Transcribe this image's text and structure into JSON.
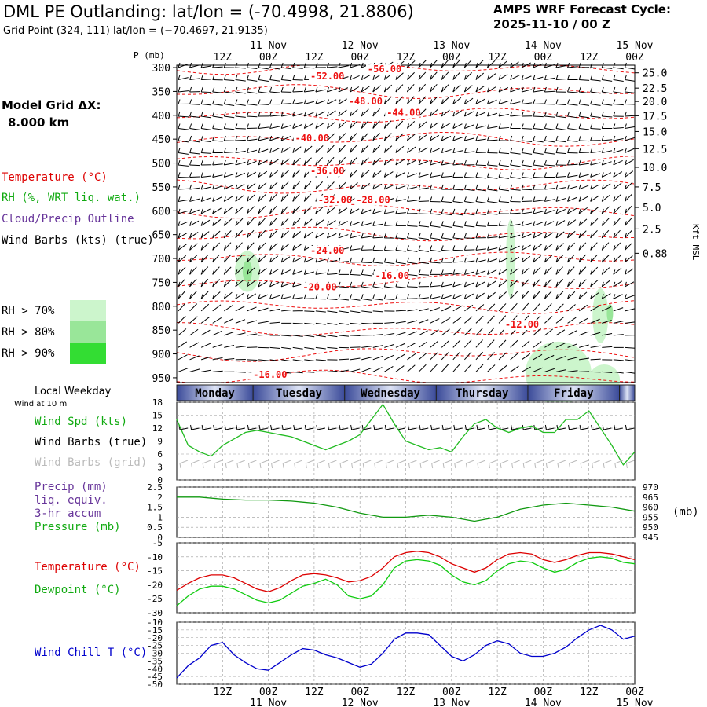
{
  "header": {
    "title": "DML PE Outlanding:  lat/lon = (-70.4998, 21.8806)",
    "subtitle": "Grid Point (324, 111) lat/lon = (−70.4697, 21.9135)",
    "cycle_line1": "AMPS WRF Forecast Cycle:",
    "cycle_line2": "2025-11-10 / 00  Z"
  },
  "legend": {
    "grid_line1": "Model Grid ΔX:",
    "grid_line2": "8.000 km",
    "temperature": "Temperature (°C)",
    "rh": "RH (%, WRT liq. wat.)",
    "cloud": "Cloud/Precip Outline",
    "wind_barbs": "Wind Barbs (kts) (true)",
    "rh70": "RH > 70%",
    "rh80": "RH > 80%",
    "rh90": "RH > 90%",
    "rh_colors": [
      "#ccf5cc",
      "#99e699",
      "#33dd33"
    ]
  },
  "time_axis": {
    "top_labels": [
      {
        "t": 12,
        "text": "12Z"
      },
      {
        "t": 24,
        "text": "00Z"
      },
      {
        "t": 36,
        "text": "12Z"
      },
      {
        "t": 48,
        "text": "00Z"
      },
      {
        "t": 60,
        "text": "12Z"
      },
      {
        "t": 72,
        "text": "00Z"
      },
      {
        "t": 84,
        "text": "12Z"
      },
      {
        "t": 96,
        "text": "00Z"
      },
      {
        "t": 108,
        "text": "12Z"
      },
      {
        "t": 120,
        "text": "00Z"
      }
    ],
    "date_labels": [
      {
        "t": 24,
        "text": "11 Nov"
      },
      {
        "t": 48,
        "text": "12 Nov"
      },
      {
        "t": 72,
        "text": "13 Nov"
      },
      {
        "t": 96,
        "text": "14 Nov"
      },
      {
        "t": 120,
        "text": "15 Nov"
      }
    ]
  },
  "weekday": {
    "label": "Local Weekday",
    "sublabel": "Wind at 10 m",
    "days": [
      {
        "name": "Monday",
        "start": 0,
        "end": 20
      },
      {
        "name": "Tuesday",
        "start": 20,
        "end": 44
      },
      {
        "name": "Wednesday",
        "start": 44,
        "end": 68
      },
      {
        "name": "Thursday",
        "start": 68,
        "end": 92
      },
      {
        "name": "Friday",
        "start": 92,
        "end": 116
      },
      {
        "name": "",
        "start": 116,
        "end": 120
      }
    ]
  },
  "panels": {
    "wind_labels": [
      "Wind Spd (kts)",
      "Wind Barbs (true)",
      "Wind Barbs (grid)"
    ],
    "precip_labels": [
      "Precip (mm)",
      "liq. equiv.",
      "3-hr accum",
      "Pressure (mb)"
    ],
    "pressure_unit": "(mb)",
    "temp_labels": [
      "Temperature (°C)",
      "Dewpoint (°C)"
    ],
    "windchill_label": "Wind Chill T (°C)",
    "colors": {
      "temperature": "#dd0000",
      "dewpoint": "#11cc11",
      "windspd": "#22bb22",
      "pressure": "#119911",
      "windchill": "#0000cc",
      "precip": "#663399",
      "contour": "#ee1111"
    }
  },
  "chart_data": [
    {
      "type": "heatmap",
      "name": "pressure-time cross section",
      "xlabel": "",
      "ylabel": "P (mb)",
      "y_right_label": "Kft MSL",
      "ylim": [
        960,
        295
      ],
      "pressure_ticks": [
        300,
        350,
        400,
        450,
        500,
        550,
        600,
        650,
        700,
        750,
        800,
        850,
        900,
        950
      ],
      "kft_ticks": [
        {
          "p": 311,
          "text": "25.0"
        },
        {
          "p": 343,
          "text": "22.5"
        },
        {
          "p": 371,
          "text": "20.0"
        },
        {
          "p": 401,
          "text": "17.5"
        },
        {
          "p": 434,
          "text": "15.0"
        },
        {
          "p": 470,
          "text": "12.5"
        },
        {
          "p": 509,
          "text": "10.0"
        },
        {
          "p": 550,
          "text": "7.5"
        },
        {
          "p": 593,
          "text": "5.0"
        },
        {
          "p": 638,
          "text": "2.5"
        },
        {
          "p": 689,
          "text": "0.88"
        }
      ],
      "temperature_labels": [
        {
          "t": 50,
          "p": 310,
          "text": "-56.00"
        },
        {
          "t": 35,
          "p": 325,
          "text": "-52.00"
        },
        {
          "t": 45,
          "p": 377,
          "text": "-48.00"
        },
        {
          "t": 55,
          "p": 401,
          "text": "-44.00"
        },
        {
          "t": 31,
          "p": 455,
          "text": "-40.00"
        },
        {
          "t": 35,
          "p": 523,
          "text": "-36.00"
        },
        {
          "t": 37,
          "p": 584,
          "text": "-32.00"
        },
        {
          "t": 47,
          "p": 584,
          "text": "-28.00"
        },
        {
          "t": 35,
          "p": 690,
          "text": "-24.00"
        },
        {
          "t": 52,
          "p": 743,
          "text": "-16.00"
        },
        {
          "t": 33,
          "p": 767,
          "text": "-20.00"
        },
        {
          "t": 86,
          "p": 845,
          "text": "-12.00"
        },
        {
          "t": 20,
          "p": 950,
          "text": "-16.00"
        }
      ]
    },
    {
      "type": "line",
      "name": "10 m wind speed",
      "ylabel": "Wind Spd (kts)",
      "ylim": [
        0,
        18
      ],
      "yticks": [
        0,
        3,
        6,
        9,
        12,
        15,
        18
      ],
      "x": [
        0,
        3,
        6,
        9,
        12,
        15,
        18,
        21,
        24,
        27,
        30,
        33,
        36,
        39,
        42,
        45,
        48,
        51,
        54,
        57,
        60,
        63,
        66,
        69,
        72,
        75,
        78,
        81,
        84,
        87,
        90,
        93,
        96,
        99,
        102,
        105,
        108,
        111,
        114,
        117,
        120
      ],
      "values": [
        14,
        8,
        6.5,
        5.5,
        8,
        9.5,
        11,
        11.5,
        11,
        10.5,
        10,
        9,
        8,
        7,
        8,
        9,
        10.5,
        14,
        17.5,
        13,
        9,
        8,
        7,
        7.5,
        6.5,
        10,
        13,
        14,
        12,
        11,
        12,
        12.5,
        11,
        11,
        14,
        14,
        16,
        12,
        8,
        3.5,
        6.5
      ]
    },
    {
      "type": "line",
      "name": "precip and pressure",
      "ylabel": "Precip (mm)",
      "ylim": [
        0,
        2.5
      ],
      "yticks": [
        0.0,
        0.5,
        1.0,
        1.5,
        2.0,
        2.5
      ],
      "y2label": "Pressure (mb)",
      "y2lim": [
        945,
        970
      ],
      "y2ticks": [
        945,
        950,
        955,
        960,
        965,
        970
      ],
      "series": [
        {
          "name": "Pressure (mb)",
          "x": [
            0,
            6,
            12,
            18,
            24,
            30,
            36,
            42,
            48,
            54,
            60,
            66,
            72,
            78,
            84,
            90,
            96,
            102,
            108,
            114,
            120
          ],
          "values": [
            965,
            965,
            964,
            963.5,
            963.5,
            963,
            962,
            960,
            957,
            955,
            955,
            956,
            955,
            953,
            955,
            959,
            961,
            962,
            961,
            960,
            958
          ]
        }
      ]
    },
    {
      "type": "line",
      "name": "temperature and dewpoint",
      "ylim": [
        -30,
        -5
      ],
      "yticks": [
        -30,
        -25,
        -20,
        -15,
        -10,
        -5
      ],
      "x": [
        0,
        3,
        6,
        9,
        12,
        15,
        18,
        21,
        24,
        27,
        30,
        33,
        36,
        39,
        42,
        45,
        48,
        51,
        54,
        57,
        60,
        63,
        66,
        69,
        72,
        75,
        78,
        81,
        84,
        87,
        90,
        93,
        96,
        99,
        102,
        105,
        108,
        111,
        114,
        117,
        120
      ],
      "series": [
        {
          "name": "Temperature (°C)",
          "values": [
            -22,
            -19.5,
            -17.5,
            -16.5,
            -16.5,
            -17.5,
            -19.5,
            -21.5,
            -22.5,
            -21,
            -18.5,
            -16.5,
            -16,
            -16.5,
            -17.5,
            -19,
            -18.5,
            -17,
            -14,
            -10,
            -8.5,
            -8,
            -8.5,
            -10,
            -12.5,
            -14,
            -15.5,
            -14,
            -11,
            -9,
            -8.5,
            -9,
            -11,
            -12,
            -11,
            -9.5,
            -8.5,
            -8.5,
            -9,
            -10,
            -11
          ]
        },
        {
          "name": "Dewpoint (°C)",
          "values": [
            -27.5,
            -24,
            -21.5,
            -20.5,
            -20.5,
            -21.5,
            -23.5,
            -25.5,
            -26.5,
            -25.5,
            -23,
            -20.5,
            -19.5,
            -18,
            -20,
            -24,
            -25,
            -24,
            -20,
            -14,
            -11.5,
            -11,
            -11.5,
            -13,
            -16.5,
            -19,
            -20,
            -18.5,
            -15,
            -12.5,
            -11.5,
            -12,
            -14,
            -15.5,
            -14.5,
            -12,
            -10.5,
            -10,
            -10.5,
            -12,
            -12.5
          ]
        }
      ]
    },
    {
      "type": "line",
      "name": "wind chill",
      "ylabel": "Wind Chill T (°C)",
      "ylim": [
        -50,
        -10
      ],
      "yticks": [
        -50,
        -45,
        -40,
        -35,
        -30,
        -25,
        -20,
        -15,
        -10
      ],
      "x": [
        0,
        3,
        6,
        9,
        12,
        15,
        18,
        21,
        24,
        27,
        30,
        33,
        36,
        39,
        42,
        45,
        48,
        51,
        54,
        57,
        60,
        63,
        66,
        69,
        72,
        75,
        78,
        81,
        84,
        87,
        90,
        93,
        96,
        99,
        102,
        105,
        108,
        111,
        114,
        117,
        120
      ],
      "series": [
        {
          "name": "Wind Chill T (°C)",
          "values": [
            -46,
            -38,
            -33,
            -25,
            -23,
            -31,
            -36,
            -40,
            -41,
            -36,
            -31,
            -27,
            -28,
            -31,
            -33,
            -36,
            -39,
            -37,
            -30,
            -21,
            -17,
            -17,
            -18,
            -25,
            -32,
            -35,
            -31,
            -25,
            -22,
            -24,
            -30,
            -32,
            -32,
            -30,
            -26,
            -20,
            -15,
            -12,
            -15,
            -21,
            -19
          ]
        }
      ]
    }
  ]
}
